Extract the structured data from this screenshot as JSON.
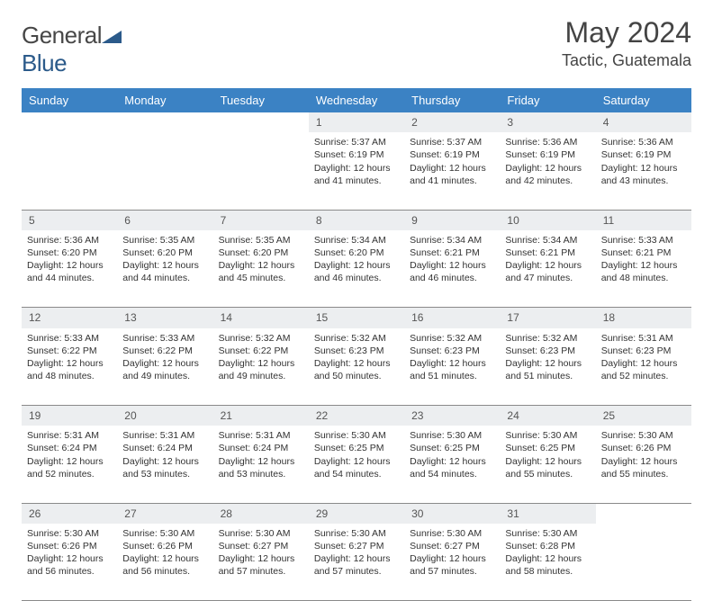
{
  "logo": {
    "word1": "General",
    "word2": "Blue"
  },
  "title": "May 2024",
  "location": "Tactic, Guatemala",
  "colors": {
    "header_bg": "#3b82c4",
    "header_text": "#ffffff",
    "daynum_bg": "#eceef0",
    "border": "#8a8a8a",
    "text": "#333333",
    "logo_gray": "#474747",
    "logo_blue": "#2b5a8a"
  },
  "day_headers": [
    "Sunday",
    "Monday",
    "Tuesday",
    "Wednesday",
    "Thursday",
    "Friday",
    "Saturday"
  ],
  "weeks": [
    {
      "nums": [
        "",
        "",
        "",
        "1",
        "2",
        "3",
        "4"
      ],
      "cells": [
        null,
        null,
        null,
        {
          "sunrise": "5:37 AM",
          "sunset": "6:19 PM",
          "daylight": "12 hours and 41 minutes."
        },
        {
          "sunrise": "5:37 AM",
          "sunset": "6:19 PM",
          "daylight": "12 hours and 41 minutes."
        },
        {
          "sunrise": "5:36 AM",
          "sunset": "6:19 PM",
          "daylight": "12 hours and 42 minutes."
        },
        {
          "sunrise": "5:36 AM",
          "sunset": "6:19 PM",
          "daylight": "12 hours and 43 minutes."
        }
      ]
    },
    {
      "nums": [
        "5",
        "6",
        "7",
        "8",
        "9",
        "10",
        "11"
      ],
      "cells": [
        {
          "sunrise": "5:36 AM",
          "sunset": "6:20 PM",
          "daylight": "12 hours and 44 minutes."
        },
        {
          "sunrise": "5:35 AM",
          "sunset": "6:20 PM",
          "daylight": "12 hours and 44 minutes."
        },
        {
          "sunrise": "5:35 AM",
          "sunset": "6:20 PM",
          "daylight": "12 hours and 45 minutes."
        },
        {
          "sunrise": "5:34 AM",
          "sunset": "6:20 PM",
          "daylight": "12 hours and 46 minutes."
        },
        {
          "sunrise": "5:34 AM",
          "sunset": "6:21 PM",
          "daylight": "12 hours and 46 minutes."
        },
        {
          "sunrise": "5:34 AM",
          "sunset": "6:21 PM",
          "daylight": "12 hours and 47 minutes."
        },
        {
          "sunrise": "5:33 AM",
          "sunset": "6:21 PM",
          "daylight": "12 hours and 48 minutes."
        }
      ]
    },
    {
      "nums": [
        "12",
        "13",
        "14",
        "15",
        "16",
        "17",
        "18"
      ],
      "cells": [
        {
          "sunrise": "5:33 AM",
          "sunset": "6:22 PM",
          "daylight": "12 hours and 48 minutes."
        },
        {
          "sunrise": "5:33 AM",
          "sunset": "6:22 PM",
          "daylight": "12 hours and 49 minutes."
        },
        {
          "sunrise": "5:32 AM",
          "sunset": "6:22 PM",
          "daylight": "12 hours and 49 minutes."
        },
        {
          "sunrise": "5:32 AM",
          "sunset": "6:23 PM",
          "daylight": "12 hours and 50 minutes."
        },
        {
          "sunrise": "5:32 AM",
          "sunset": "6:23 PM",
          "daylight": "12 hours and 51 minutes."
        },
        {
          "sunrise": "5:32 AM",
          "sunset": "6:23 PM",
          "daylight": "12 hours and 51 minutes."
        },
        {
          "sunrise": "5:31 AM",
          "sunset": "6:23 PM",
          "daylight": "12 hours and 52 minutes."
        }
      ]
    },
    {
      "nums": [
        "19",
        "20",
        "21",
        "22",
        "23",
        "24",
        "25"
      ],
      "cells": [
        {
          "sunrise": "5:31 AM",
          "sunset": "6:24 PM",
          "daylight": "12 hours and 52 minutes."
        },
        {
          "sunrise": "5:31 AM",
          "sunset": "6:24 PM",
          "daylight": "12 hours and 53 minutes."
        },
        {
          "sunrise": "5:31 AM",
          "sunset": "6:24 PM",
          "daylight": "12 hours and 53 minutes."
        },
        {
          "sunrise": "5:30 AM",
          "sunset": "6:25 PM",
          "daylight": "12 hours and 54 minutes."
        },
        {
          "sunrise": "5:30 AM",
          "sunset": "6:25 PM",
          "daylight": "12 hours and 54 minutes."
        },
        {
          "sunrise": "5:30 AM",
          "sunset": "6:25 PM",
          "daylight": "12 hours and 55 minutes."
        },
        {
          "sunrise": "5:30 AM",
          "sunset": "6:26 PM",
          "daylight": "12 hours and 55 minutes."
        }
      ]
    },
    {
      "nums": [
        "26",
        "27",
        "28",
        "29",
        "30",
        "31",
        ""
      ],
      "cells": [
        {
          "sunrise": "5:30 AM",
          "sunset": "6:26 PM",
          "daylight": "12 hours and 56 minutes."
        },
        {
          "sunrise": "5:30 AM",
          "sunset": "6:26 PM",
          "daylight": "12 hours and 56 minutes."
        },
        {
          "sunrise": "5:30 AM",
          "sunset": "6:27 PM",
          "daylight": "12 hours and 57 minutes."
        },
        {
          "sunrise": "5:30 AM",
          "sunset": "6:27 PM",
          "daylight": "12 hours and 57 minutes."
        },
        {
          "sunrise": "5:30 AM",
          "sunset": "6:27 PM",
          "daylight": "12 hours and 57 minutes."
        },
        {
          "sunrise": "5:30 AM",
          "sunset": "6:28 PM",
          "daylight": "12 hours and 58 minutes."
        },
        null
      ]
    }
  ],
  "labels": {
    "sunrise": "Sunrise:",
    "sunset": "Sunset:",
    "daylight": "Daylight:"
  }
}
